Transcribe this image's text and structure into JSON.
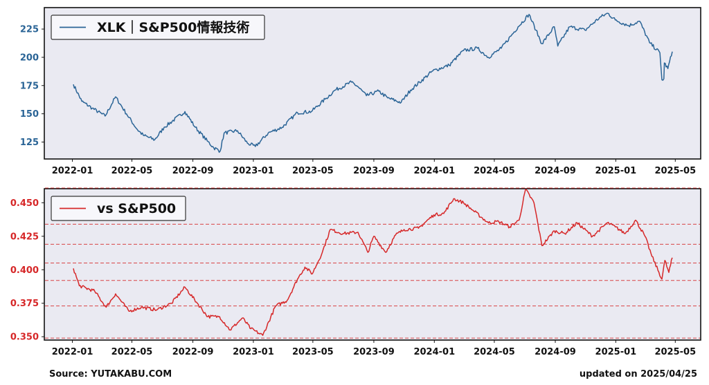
{
  "chart_data": [
    {
      "type": "line",
      "legend": "XLK｜S&P500情報技術",
      "legend_placement": "top-left",
      "color": "#2a6496",
      "ylim": [
        110,
        244
      ],
      "yticks": [
        125,
        150,
        175,
        200,
        225
      ],
      "ytick_labels": [
        "125",
        "150",
        "175",
        "200",
        "225"
      ],
      "ytick_color": "#2a6496",
      "grid": false,
      "x_tick_labels": [
        "2022-01",
        "2022-05",
        "2022-09",
        "2023-01",
        "2023-05",
        "2023-09",
        "2024-01",
        "2024-05",
        "2024-09",
        "2025-01",
        "2025-05"
      ],
      "x": [
        "2022-01-03",
        "2022-01-20",
        "2022-02-10",
        "2022-03-08",
        "2022-03-29",
        "2022-04-20",
        "2022-05-12",
        "2022-05-24",
        "2022-06-16",
        "2022-07-05",
        "2022-08-16",
        "2022-09-06",
        "2022-09-30",
        "2022-10-13",
        "2022-10-26",
        "2022-11-03",
        "2022-11-30",
        "2022-12-20",
        "2023-01-05",
        "2023-01-31",
        "2023-02-28",
        "2023-03-31",
        "2023-04-28",
        "2023-05-26",
        "2023-06-15",
        "2023-07-18",
        "2023-07-31",
        "2023-08-17",
        "2023-09-11",
        "2023-09-29",
        "2023-10-26",
        "2023-11-14",
        "2023-12-29",
        "2024-01-31",
        "2024-02-29",
        "2024-03-28",
        "2024-04-19",
        "2024-05-15",
        "2024-06-18",
        "2024-07-10",
        "2024-07-24",
        "2024-08-05",
        "2024-08-30",
        "2024-09-06",
        "2024-09-30",
        "2024-10-31",
        "2024-11-29",
        "2024-12-16",
        "2024-12-31",
        "2025-01-27",
        "2025-02-18",
        "2025-03-10",
        "2025-03-31",
        "2025-04-04",
        "2025-04-08",
        "2025-04-09",
        "2025-04-16",
        "2025-04-25"
      ],
      "values": [
        176,
        161,
        155,
        148,
        165,
        150,
        136,
        131,
        127,
        138,
        152,
        138,
        126,
        120,
        117,
        133,
        135,
        124,
        121,
        133,
        138,
        151,
        152,
        163,
        171,
        178,
        174,
        166,
        170,
        164,
        160,
        171,
        188,
        193,
        206,
        208,
        200,
        208,
        227,
        238,
        224,
        212,
        227,
        210,
        227,
        224,
        235,
        239,
        233,
        228,
        232,
        213,
        204,
        180,
        181,
        195,
        190,
        205
      ]
    },
    {
      "type": "line",
      "legend": "vs S&P500",
      "legend_placement": "top-left",
      "color": "#d62728",
      "ylim": [
        0.3475,
        0.4605
      ],
      "yticks": [
        0.35,
        0.375,
        0.4,
        0.425,
        0.45
      ],
      "ytick_labels": [
        "0.350",
        "0.375",
        "0.400",
        "0.425",
        "0.450"
      ],
      "ytick_color": "#d62728",
      "hlines": [
        0.349,
        0.373,
        0.392,
        0.405,
        0.419,
        0.434,
        0.461
      ],
      "x_tick_labels": [
        "2022-01",
        "2022-05",
        "2022-09",
        "2023-01",
        "2023-05",
        "2023-09",
        "2024-01",
        "2024-05",
        "2024-09",
        "2025-01",
        "2025-05"
      ],
      "x": [
        "2022-01-03",
        "2022-01-15",
        "2022-02-15",
        "2022-03-10",
        "2022-03-29",
        "2022-04-25",
        "2022-05-20",
        "2022-06-20",
        "2022-07-20",
        "2022-08-16",
        "2022-09-10",
        "2022-10-01",
        "2022-10-25",
        "2022-11-15",
        "2022-12-10",
        "2022-12-27",
        "2023-01-20",
        "2023-02-15",
        "2023-03-10",
        "2023-03-31",
        "2023-04-15",
        "2023-04-30",
        "2023-05-20",
        "2023-06-05",
        "2023-07-01",
        "2023-07-31",
        "2023-08-20",
        "2023-09-01",
        "2023-09-25",
        "2023-10-15",
        "2023-11-01",
        "2023-11-30",
        "2023-12-31",
        "2024-01-20",
        "2024-02-09",
        "2024-02-29",
        "2024-03-20",
        "2024-04-19",
        "2024-05-10",
        "2024-06-01",
        "2024-06-20",
        "2024-07-03",
        "2024-07-20",
        "2024-08-05",
        "2024-08-30",
        "2024-09-20",
        "2024-10-15",
        "2024-11-15",
        "2024-12-15",
        "2024-12-31",
        "2025-01-20",
        "2025-02-10",
        "2025-03-01",
        "2025-03-15",
        "2025-04-04",
        "2025-04-10",
        "2025-04-18",
        "2025-04-25"
      ],
      "values": [
        0.401,
        0.388,
        0.384,
        0.372,
        0.382,
        0.369,
        0.372,
        0.37,
        0.375,
        0.387,
        0.375,
        0.365,
        0.365,
        0.355,
        0.364,
        0.356,
        0.351,
        0.373,
        0.377,
        0.393,
        0.402,
        0.397,
        0.413,
        0.43,
        0.427,
        0.428,
        0.413,
        0.425,
        0.413,
        0.426,
        0.43,
        0.431,
        0.441,
        0.442,
        0.453,
        0.45,
        0.444,
        0.435,
        0.436,
        0.432,
        0.437,
        0.46,
        0.45,
        0.418,
        0.429,
        0.427,
        0.435,
        0.425,
        0.435,
        0.432,
        0.427,
        0.437,
        0.425,
        0.41,
        0.393,
        0.407,
        0.398,
        0.409
      ]
    }
  ],
  "footer": {
    "source": "Source: YUTAKABU.COM",
    "updated": "updated on 2025/04/25"
  }
}
